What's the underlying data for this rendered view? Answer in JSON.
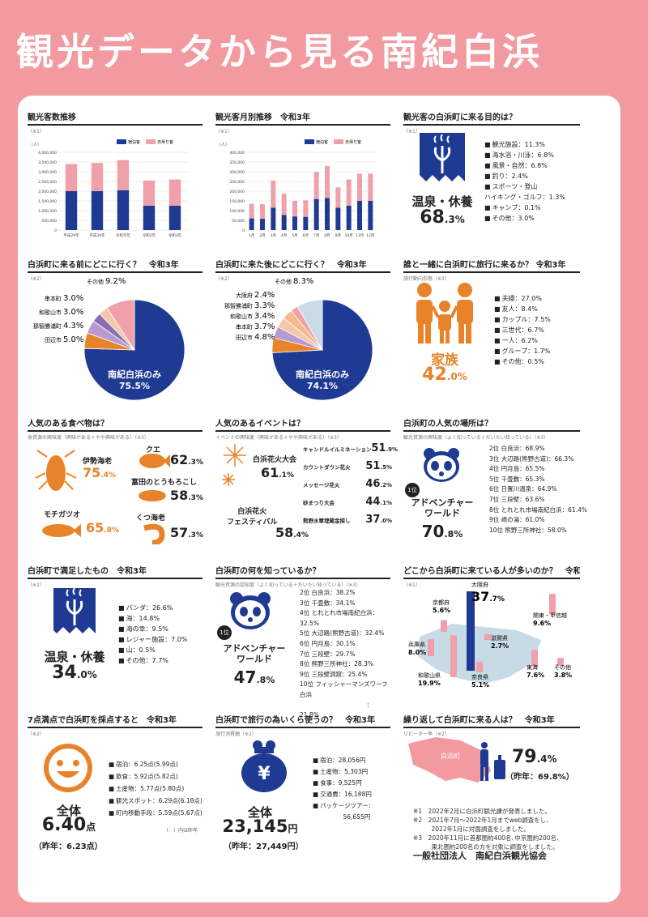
{
  "title": "観光データから見る南紀白浜",
  "colors": {
    "bg": "#f29aa0",
    "navy": "#1f3a93",
    "pink": "#f0a0a8",
    "orange": "#e8832a"
  },
  "s1": {
    "title": "観光客数推移",
    "note": "（※1）",
    "unit": "（人）",
    "legend": [
      "宿泊客",
      "日帰り客"
    ]
  },
  "s2": {
    "title": "観光客月別推移　令和3年",
    "note": "（※1）",
    "unit": "（人）",
    "legend": [
      "宿泊客",
      "日帰り客"
    ]
  },
  "chart_data": [
    {
      "type": "bar",
      "stacked": true,
      "categories": [
        "平成29年",
        "平成30年",
        "令和元年",
        "令和2年",
        "令和3年"
      ],
      "series": [
        {
          "name": "宿泊客",
          "values": [
            2000000,
            2000000,
            2050000,
            1250000,
            1250000
          ]
        },
        {
          "name": "日帰り客",
          "values": [
            1400000,
            1450000,
            1550000,
            1300000,
            1350000
          ]
        }
      ],
      "yticks": [
        "0",
        "500,000",
        "1,000,000",
        "1,500,000",
        "2,000,000",
        "2,500,000",
        "3,000,000",
        "3,500,000",
        "4,000,000"
      ],
      "ylim": [
        0,
        4000000
      ]
    },
    {
      "type": "bar",
      "stacked": true,
      "categories": [
        "1月",
        "2月",
        "3月",
        "4月",
        "5月",
        "6月",
        "7月",
        "8月",
        "9月",
        "10月",
        "11月",
        "12月"
      ],
      "series": [
        {
          "name": "宿泊客",
          "values": [
            60000,
            58000,
            115000,
            78000,
            70000,
            68000,
            160000,
            165000,
            115000,
            125000,
            150000,
            150000
          ]
        },
        {
          "name": "日帰り客",
          "values": [
            75000,
            75000,
            140000,
            110000,
            80000,
            85000,
            140000,
            165000,
            105000,
            135000,
            140000,
            140000
          ]
        }
      ],
      "yticks": [
        "0",
        "50,000",
        "100,000",
        "150,000",
        "200,000",
        "250,000",
        "300,000",
        "350,000",
        "400,000"
      ],
      "ylim": [
        0,
        400000
      ]
    },
    {
      "type": "pie",
      "title": "白浜町に来る前にどこに行く？　令和3年",
      "labels": [
        "南紀白浜のみ",
        "田辺市",
        "那智勝浦町",
        "和歌山市",
        "串本町",
        "その他"
      ],
      "values": [
        75.5,
        5.0,
        4.3,
        3.0,
        3.0,
        9.2
      ]
    },
    {
      "type": "pie",
      "title": "白浜町に来た後にどこに行く？　令和3年",
      "labels": [
        "南紀白浜のみ",
        "田辺市",
        "串本町",
        "和歌山市",
        "那智勝浦町",
        "大阪府",
        "その他"
      ],
      "values": [
        74.1,
        4.8,
        3.7,
        3.4,
        3.3,
        2.4,
        8.3
      ]
    },
    {
      "type": "bar",
      "title": "どこから白浜町に来ている人が多いのか？　令和3年",
      "categories": [
        "大阪府",
        "関東・甲信越",
        "京都府",
        "奈良県",
        "兵庫県",
        "和歌山県",
        "滋賀県",
        "東海",
        "その他"
      ],
      "values": [
        37.7,
        9.6,
        5.6,
        5.1,
        8.0,
        19.9,
        2.7,
        7.6,
        3.8
      ]
    }
  ],
  "s3": {
    "title": "観光客の白浜町に来る目的は？",
    "note": "（※1）",
    "main": "温泉・休養",
    "pct": "68",
    "dec": ".3%",
    "items": [
      "観光施設：11.3%",
      "海水浴・川泳：6.8%",
      "風景・自然：6.8%",
      "釣り：2.4%",
      "スポーツ・登山\nハイキング・ゴルフ：1.3%",
      "キャンプ：0.1%",
      "その他：3.0%"
    ]
  },
  "p1": {
    "note": "（※2）",
    "main": "南紀白浜のみ",
    "mainpct": "75.5%",
    "labels": [
      "その他",
      "串本町",
      "和歌山市",
      "那智勝浦町",
      "田辺市"
    ],
    "pcts": [
      "9.2%",
      "3.0%",
      "3.0%",
      "4.3%",
      "5.0%"
    ]
  },
  "p2": {
    "note": "（※2）",
    "main": "南紀白浜のみ",
    "mainpct": "74.1%",
    "labels": [
      "その他",
      "大阪府",
      "那智勝浦町",
      "和歌山市",
      "串本町",
      "田辺市"
    ],
    "pcts": [
      "8.3%",
      "2.4%",
      "3.3%",
      "3.4%",
      "3.7%",
      "4.8%"
    ]
  },
  "s6": {
    "title": "誰と一緒に白浜町に旅行に来るか？ 令和3年",
    "note": "旅行動向形態（※2）",
    "main": "家族",
    "pct": "42",
    "dec": ".0%",
    "items": [
      "夫婦：27.0%",
      "友人：8.4%",
      "カップル：7.5%",
      "三世代：6.7%",
      "一人：6.2%",
      "グループ：1.7%",
      "その他：0.5%"
    ]
  },
  "s7": {
    "title": "人気のある食べ物は？",
    "note": "食資源の興味度（興味がある＋やや興味がある）（※3）",
    "items": [
      {
        "name": "伊勢海老",
        "pct": "75",
        "dec": ".4%"
      },
      {
        "name": "クエ",
        "pct": "62",
        "dec": ".3%"
      },
      {
        "name": "富田のとうもろこし",
        "pct": "58",
        "dec": ".3%"
      },
      {
        "name": "モチガツオ",
        "pct": "65",
        "dec": ".8%"
      },
      {
        "name": "くつ海老",
        "pct": "57",
        "dec": ".3%"
      }
    ]
  },
  "s8": {
    "title": "人気のあるイベントは？",
    "note": "イベントの興味度（興味がある＋やや興味がある）（※3）",
    "main1": "白浜花火大会",
    "m1pct": "61",
    "m1dec": ".1%",
    "main2": "白浜花火\nフェスティバル",
    "m2pct": "58",
    "m2dec": ".4%",
    "items": [
      {
        "name": "キャンドルイルミネーション",
        "pct": "51",
        "dec": ".9%"
      },
      {
        "name": "カウントダウン花火",
        "pct": "51",
        "dec": ".5%"
      },
      {
        "name": "メッセージ花火",
        "pct": "46",
        "dec": ".2%"
      },
      {
        "name": "砂まつり大会",
        "pct": "44",
        "dec": ".1%"
      },
      {
        "name": "熊野水軍埋蔵金探し",
        "pct": "37",
        "dec": ".0%"
      }
    ]
  },
  "s9": {
    "title": "白浜町の人気の場所は？",
    "note": "観光資源の興味度（よく知っている＋だいたい知っている）（※3）",
    "rank": "1位",
    "main": "アドベンチャー\nワールド",
    "pct": "70",
    "dec": ".8%",
    "items": [
      "2位 白良浜：68.9%",
      "3位 大辺路(熊野古道)：66.3%",
      "4位 円月島：65.5%",
      "5位 千畳敷：65.3%",
      "6位 日置川温泉：64.9%",
      "7位 三段壁：63.6%",
      "8位 とれとれ市場南紀白浜：61.4%",
      "9位 崎の湯：61.0%",
      "10位 熊野三所神社：58.0%"
    ]
  },
  "s10": {
    "title": "白浜町で満足したもの　令和3年",
    "note": "（※2）",
    "main": "温泉・休養",
    "pct": "34",
    "dec": ".0%",
    "items": [
      "パンダ：26.6%",
      "海：14.8%",
      "海の幸：9.5%",
      "レジャー施設：7.0%",
      "山：0.5%",
      "その他：7.7%"
    ]
  },
  "s11": {
    "title": "白浜町の何を知っているか？",
    "note": "観光資源の認知度（よく知っている＋だいたい知っている）（※3）",
    "rank": "1位",
    "main": "アドベンチャー\nワールド",
    "pct": "47",
    "dec": ".8%",
    "items": [
      "2位 白良浜：38.2%",
      "3位 千畳敷：34.1%",
      "4位 とれとれ市場南紀白浜：32.5%",
      "5位 大辺路(熊野古道)：32.4%",
      "6位 円月島：30.1%",
      "7位 三段壁：29.7%",
      "8位 熊野三所神社：28.3%",
      "9位 三段壁洞窟：25.4%",
      "10位 フィッシャーマンズワーフ白浜\n　　　　　　　　　　　：21.8%"
    ]
  },
  "s12": {
    "title": "どこから白浜町に来ている人が多いのか？　令和3年",
    "note": "（※1）",
    "regions": [
      {
        "name": "大阪府",
        "pct": "37",
        "dec": ".7%"
      },
      {
        "name": "関東・甲信越",
        "pct": "9.6%"
      },
      {
        "name": "京都府",
        "pct": "5.6%"
      },
      {
        "name": "滋賀県",
        "pct": "2.7%"
      },
      {
        "name": "兵庫県",
        "pct": "8.0%"
      },
      {
        "name": "東海",
        "pct": "7.6%"
      },
      {
        "name": "その他",
        "pct": "3.8%"
      },
      {
        "name": "和歌山県",
        "pct": "19.9%"
      },
      {
        "name": "奈良県",
        "pct": "5.1%"
      }
    ]
  },
  "s13": {
    "title": "7点満点で白浜町を採点すると　令和3年",
    "note": "（※2）",
    "main": "全体",
    "score": "6.40",
    "unit": "点",
    "prev": "（昨年：6.23点）",
    "items": [
      "宿泊：6.25点(5.99点)",
      "飲食：5.92点(5.82点)",
      "土産物：5.77点(5.80点)",
      "観光スポット：6.29点(6.18点)",
      "町内移動手段：5.59点(5.67点)"
    ],
    "paren": "（　）内は昨年"
  },
  "s14": {
    "title": "白浜町で旅行の為いくら使うの？　令和3年",
    "note": "旅行消費額（※2）",
    "symbol": "¥",
    "main": "全体",
    "amount": "23,145",
    "unit": "円",
    "prev": "（昨年：27,449円）",
    "items": [
      "宿泊：28,056円",
      "土産物：5,303円",
      "食事：9,525円",
      "交通費：16,188円",
      "パッケージツアー：\n　　　　　56,655円"
    ]
  },
  "s15": {
    "title": "繰り返して白浜町に来る人は？　令和3年",
    "note": "リピーター率（※2）",
    "town": "白浜町",
    "pct": "79",
    "dec": ".4%",
    "prev": "（昨年：69.8%）",
    "notes": [
      "※1　2022年2月に白浜町観光課が発表しました。",
      "※2　2021年7月～2022年1月までweb調査をし、\n　　　2022年1月に対面調査をしました。",
      "※3　2020年11月に首都圏約400名､中京圏約200名、\n　　　東北圏約200名の方を対象に調査をしました。"
    ],
    "org": "一般社団法人　南紀白浜観光協会"
  }
}
